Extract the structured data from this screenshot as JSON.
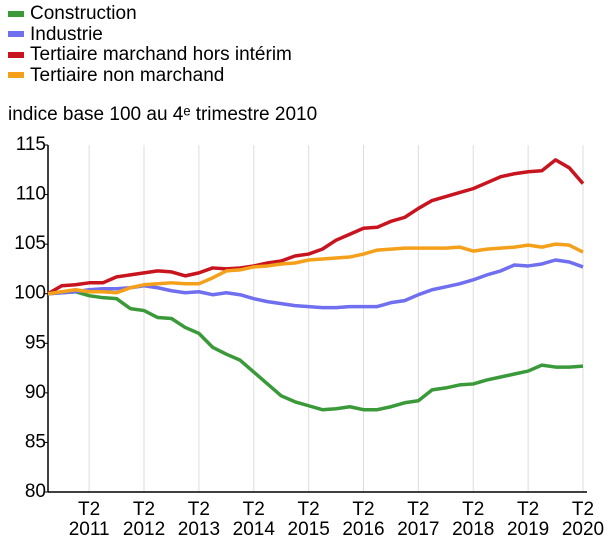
{
  "chart_data": {
    "type": "line",
    "subtitle": "indice base 100 au 4ᵉ trimestre 2010",
    "categories": [
      null,
      null,
      null,
      "T2\n2011",
      null,
      null,
      null,
      "T2\n2012",
      null,
      null,
      null,
      "T2\n2013",
      null,
      null,
      null,
      "T2\n2014",
      null,
      null,
      null,
      "T2\n2015",
      null,
      null,
      null,
      "T2\n2016",
      null,
      null,
      null,
      "T2\n2017",
      null,
      null,
      null,
      "T2\n2018",
      null,
      null,
      null,
      "T2\n2019",
      null,
      null,
      null,
      "T2\n2020"
    ],
    "series": [
      {
        "name": "Construction",
        "color": "#3a9a3a",
        "values": [
          100,
          100.1,
          100.2,
          99.8,
          99.6,
          99.5,
          98.5,
          98.3,
          97.6,
          97.5,
          96.6,
          96.0,
          94.6,
          93.9,
          93.3,
          92.1,
          90.9,
          89.7,
          89.1,
          88.7,
          88.3,
          88.4,
          88.6,
          88.3,
          88.3,
          88.6,
          89.0,
          89.2,
          90.3,
          90.5,
          90.8,
          90.9,
          91.3,
          91.6,
          91.9,
          92.2,
          92.8,
          92.6,
          92.6,
          92.7
        ]
      },
      {
        "name": "Industrie",
        "color": "#6f6ff0",
        "values": [
          100,
          100.1,
          100.2,
          100.4,
          100.5,
          100.5,
          100.6,
          100.8,
          100.6,
          100.3,
          100.1,
          100.2,
          99.9,
          100.1,
          99.9,
          99.5,
          99.2,
          99.0,
          98.8,
          98.7,
          98.6,
          98.6,
          98.7,
          98.7,
          98.7,
          99.1,
          99.3,
          99.9,
          100.4,
          100.7,
          101.0,
          101.4,
          101.9,
          102.3,
          102.9,
          102.8,
          103.0,
          103.4,
          103.2,
          102.7
        ]
      },
      {
        "name": "Tertiaire marchand hors intérim",
        "color": "#c8141e",
        "values": [
          100,
          100.8,
          100.9,
          101.1,
          101.1,
          101.7,
          101.9,
          102.1,
          102.3,
          102.2,
          101.8,
          102.1,
          102.6,
          102.5,
          102.6,
          102.8,
          103.1,
          103.3,
          103.8,
          104.0,
          104.5,
          105.4,
          106.0,
          106.6,
          106.7,
          107.3,
          107.7,
          108.6,
          109.4,
          109.8,
          110.2,
          110.6,
          111.2,
          111.8,
          112.1,
          112.3,
          112.4,
          113.5,
          112.7,
          111.1
        ]
      },
      {
        "name": "Tertiaire non marchand",
        "color": "#f5a01a",
        "values": [
          100,
          100.2,
          100.4,
          100.2,
          100.2,
          100.1,
          100.6,
          100.9,
          101.0,
          101.1,
          101.0,
          101.0,
          101.6,
          102.3,
          102.4,
          102.7,
          102.8,
          103.0,
          103.1,
          103.4,
          103.5,
          103.6,
          103.7,
          104.0,
          104.4,
          104.5,
          104.6,
          104.6,
          104.6,
          104.6,
          104.7,
          104.3,
          104.5,
          104.6,
          104.7,
          104.9,
          104.7,
          105.0,
          104.9,
          104.2
        ]
      }
    ],
    "ylim": [
      80,
      115
    ],
    "yticks": [
      80,
      85,
      90,
      95,
      100,
      105,
      110,
      115
    ],
    "grid": true
  }
}
